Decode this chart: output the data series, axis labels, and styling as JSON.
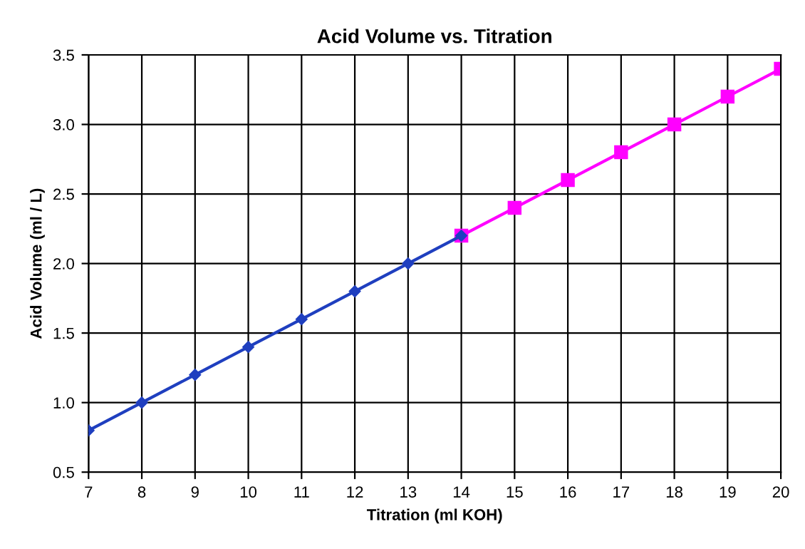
{
  "chart_data": {
    "type": "line",
    "title": "Acid Volume vs. Titration",
    "xlabel": "Titration (ml KOH)",
    "ylabel": "Acid Volume (ml / L)",
    "series": [
      {
        "color": "#1f3fbf",
        "marker": "diamond",
        "x": [
          7,
          8,
          9,
          10,
          11,
          12,
          13,
          14
        ],
        "values": [
          0.8,
          1.0,
          1.2,
          1.4,
          1.6,
          1.8,
          2.0,
          2.2
        ]
      },
      {
        "color": "#ff00ff",
        "marker": "square",
        "x": [
          14,
          15,
          16,
          17,
          18,
          19,
          20
        ],
        "values": [
          2.2,
          2.4,
          2.6,
          2.8,
          3.0,
          3.2,
          3.4
        ]
      }
    ],
    "xlim": [
      7,
      20
    ],
    "xticks": [
      7,
      8,
      9,
      10,
      11,
      12,
      13,
      14,
      15,
      16,
      17,
      18,
      19,
      20
    ],
    "ylim": [
      0.5,
      3.5
    ],
    "yticks": [
      {
        "value": 0.5,
        "label": "0.5"
      },
      {
        "value": 1,
        "label": "1.0"
      },
      {
        "value": 1.5,
        "label": "1.5"
      },
      {
        "value": 2,
        "label": "2.0"
      },
      {
        "value": 2.5,
        "label": "2.5"
      },
      {
        "value": 3,
        "label": "3.0"
      },
      {
        "value": 3.5,
        "label": "3.5"
      }
    ],
    "grid": true,
    "line_style": "solid",
    "legend": false
  }
}
